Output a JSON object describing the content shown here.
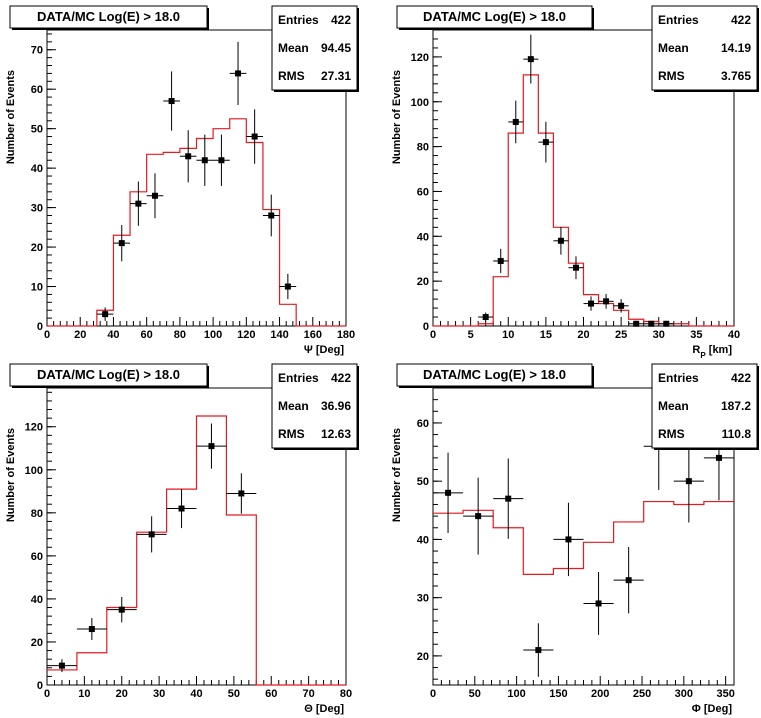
{
  "colors": {
    "mc": "#e8191f",
    "data": "#000000",
    "frame": "#000000"
  },
  "chart_data": [
    {
      "type": "histogram",
      "title": "DATA/MC Log(E) > 18.0",
      "stats": {
        "entries_label": "Entries",
        "entries": "422",
        "mean_label": "Mean",
        "mean": "94.45",
        "rms_label": "RMS",
        "rms": "27.31"
      },
      "xlabel": "Ψ [Deg]",
      "ylabel": "Number of Events",
      "xlim": [
        0,
        180
      ],
      "ylim": [
        0,
        75
      ],
      "xticks": [
        0,
        20,
        40,
        60,
        80,
        100,
        120,
        140,
        160,
        180
      ],
      "yticks": [
        0,
        10,
        20,
        30,
        40,
        50,
        60,
        70
      ],
      "mc": {
        "edges": [
          0,
          10,
          20,
          30,
          40,
          50,
          60,
          70,
          80,
          90,
          100,
          110,
          120,
          130,
          140,
          150,
          160,
          170,
          180
        ],
        "values": [
          0,
          0,
          0,
          4,
          23,
          34,
          43.5,
          44,
          45,
          47.5,
          50,
          52.5,
          46.5,
          29.5,
          5.5,
          0,
          0,
          0
        ]
      },
      "data": {
        "x": [
          35,
          45,
          55,
          65,
          75,
          85,
          95,
          105,
          115,
          125,
          135,
          145
        ],
        "y": [
          3,
          21,
          31,
          33,
          57,
          43,
          42,
          42,
          64,
          48,
          28,
          10
        ],
        "yerr": [
          1.7,
          4.6,
          5.6,
          5.7,
          7.5,
          6.6,
          6.5,
          6.5,
          8.0,
          6.9,
          5.3,
          3.2
        ],
        "xerr": 5
      }
    },
    {
      "type": "histogram",
      "title": "DATA/MC Log(E) > 18.0",
      "stats": {
        "entries_label": "Entries",
        "entries": "422",
        "mean_label": "Mean",
        "mean": "14.19",
        "rms_label": "RMS",
        "rms": "3.765"
      },
      "xlabel": "R",
      "xlabel_sub": "P",
      "xlabel_suffix": " [km]",
      "ylabel": "Number of Events",
      "xlim": [
        0,
        40
      ],
      "ylim": [
        0,
        132
      ],
      "xticks": [
        0,
        5,
        10,
        15,
        20,
        25,
        30,
        35,
        40
      ],
      "yticks": [
        0,
        20,
        40,
        60,
        80,
        100,
        120
      ],
      "mc": {
        "edges": [
          0,
          2,
          4,
          6,
          8,
          10,
          12,
          14,
          16,
          18,
          20,
          22,
          24,
          26,
          28,
          30,
          32,
          34,
          36,
          38,
          40
        ],
        "values": [
          0,
          0,
          0,
          1,
          22,
          86,
          112,
          86,
          44,
          28,
          14,
          10,
          7,
          3,
          2,
          1,
          1,
          0,
          0,
          0
        ]
      },
      "data": {
        "x": [
          7,
          9,
          11,
          13,
          15,
          17,
          19,
          21,
          23,
          25,
          27,
          29,
          31
        ],
        "y": [
          4,
          29,
          91,
          119,
          82,
          38,
          26,
          10,
          11,
          9,
          1,
          1,
          1
        ],
        "yerr": [
          2,
          5.4,
          9.5,
          10.9,
          9.1,
          6.2,
          5.1,
          3.2,
          3.3,
          3,
          1,
          1,
          1
        ],
        "xerr": 1
      }
    },
    {
      "type": "histogram",
      "title": "DATA/MC Log(E) > 18.0",
      "stats": {
        "entries_label": "Entries",
        "entries": "422",
        "mean_label": "Mean",
        "mean": "36.96",
        "rms_label": "RMS",
        "rms": "12.63"
      },
      "xlabel": "Θ [Deg]",
      "ylabel": "Number of Events",
      "xlim": [
        0,
        80
      ],
      "ylim": [
        0,
        138
      ],
      "xticks": [
        0,
        10,
        20,
        30,
        40,
        50,
        60,
        70,
        80
      ],
      "yticks": [
        0,
        20,
        40,
        60,
        80,
        100,
        120
      ],
      "mc": {
        "edges": [
          0,
          8,
          16,
          24,
          32,
          40,
          48,
          56,
          64,
          72,
          80
        ],
        "values": [
          7,
          15,
          36,
          71,
          91,
          125,
          79,
          0,
          0,
          0
        ]
      },
      "data": {
        "x": [
          4,
          12,
          20,
          28,
          36,
          44,
          52
        ],
        "y": [
          9,
          26,
          35,
          70,
          82,
          111,
          89
        ],
        "yerr": [
          3,
          5.1,
          5.9,
          8.4,
          9.1,
          10.5,
          9.4
        ],
        "xerr": 4
      }
    },
    {
      "type": "histogram",
      "title": "DATA/MC Log(E) > 18.0",
      "stats": {
        "entries_label": "Entries",
        "entries": "422",
        "mean_label": "Mean",
        "mean": "187.2",
        "rms_label": "RMS",
        "rms": "110.8"
      },
      "xlabel": "Φ [Deg]",
      "ylabel": "Number of Events",
      "xlim": [
        0,
        360
      ],
      "ylim": [
        15,
        66
      ],
      "xticks": [
        0,
        50,
        100,
        150,
        200,
        250,
        300,
        350
      ],
      "yticks": [
        20,
        30,
        40,
        50,
        60
      ],
      "mc": {
        "edges": [
          0,
          36,
          72,
          108,
          144,
          180,
          216,
          252,
          288,
          324,
          360
        ],
        "values": [
          44.5,
          45,
          42,
          34,
          35,
          39.5,
          43,
          46.5,
          46,
          46.5
        ]
      },
      "data": {
        "x": [
          18,
          54,
          90,
          126,
          162,
          198,
          234,
          270,
          306,
          342
        ],
        "y": [
          48,
          44,
          47,
          21,
          40,
          29,
          33,
          56,
          50,
          54
        ],
        "yerr": [
          6.9,
          6.6,
          6.9,
          4.6,
          6.3,
          5.4,
          5.7,
          7.5,
          7.1,
          7.3
        ],
        "xerr": 18
      }
    }
  ]
}
